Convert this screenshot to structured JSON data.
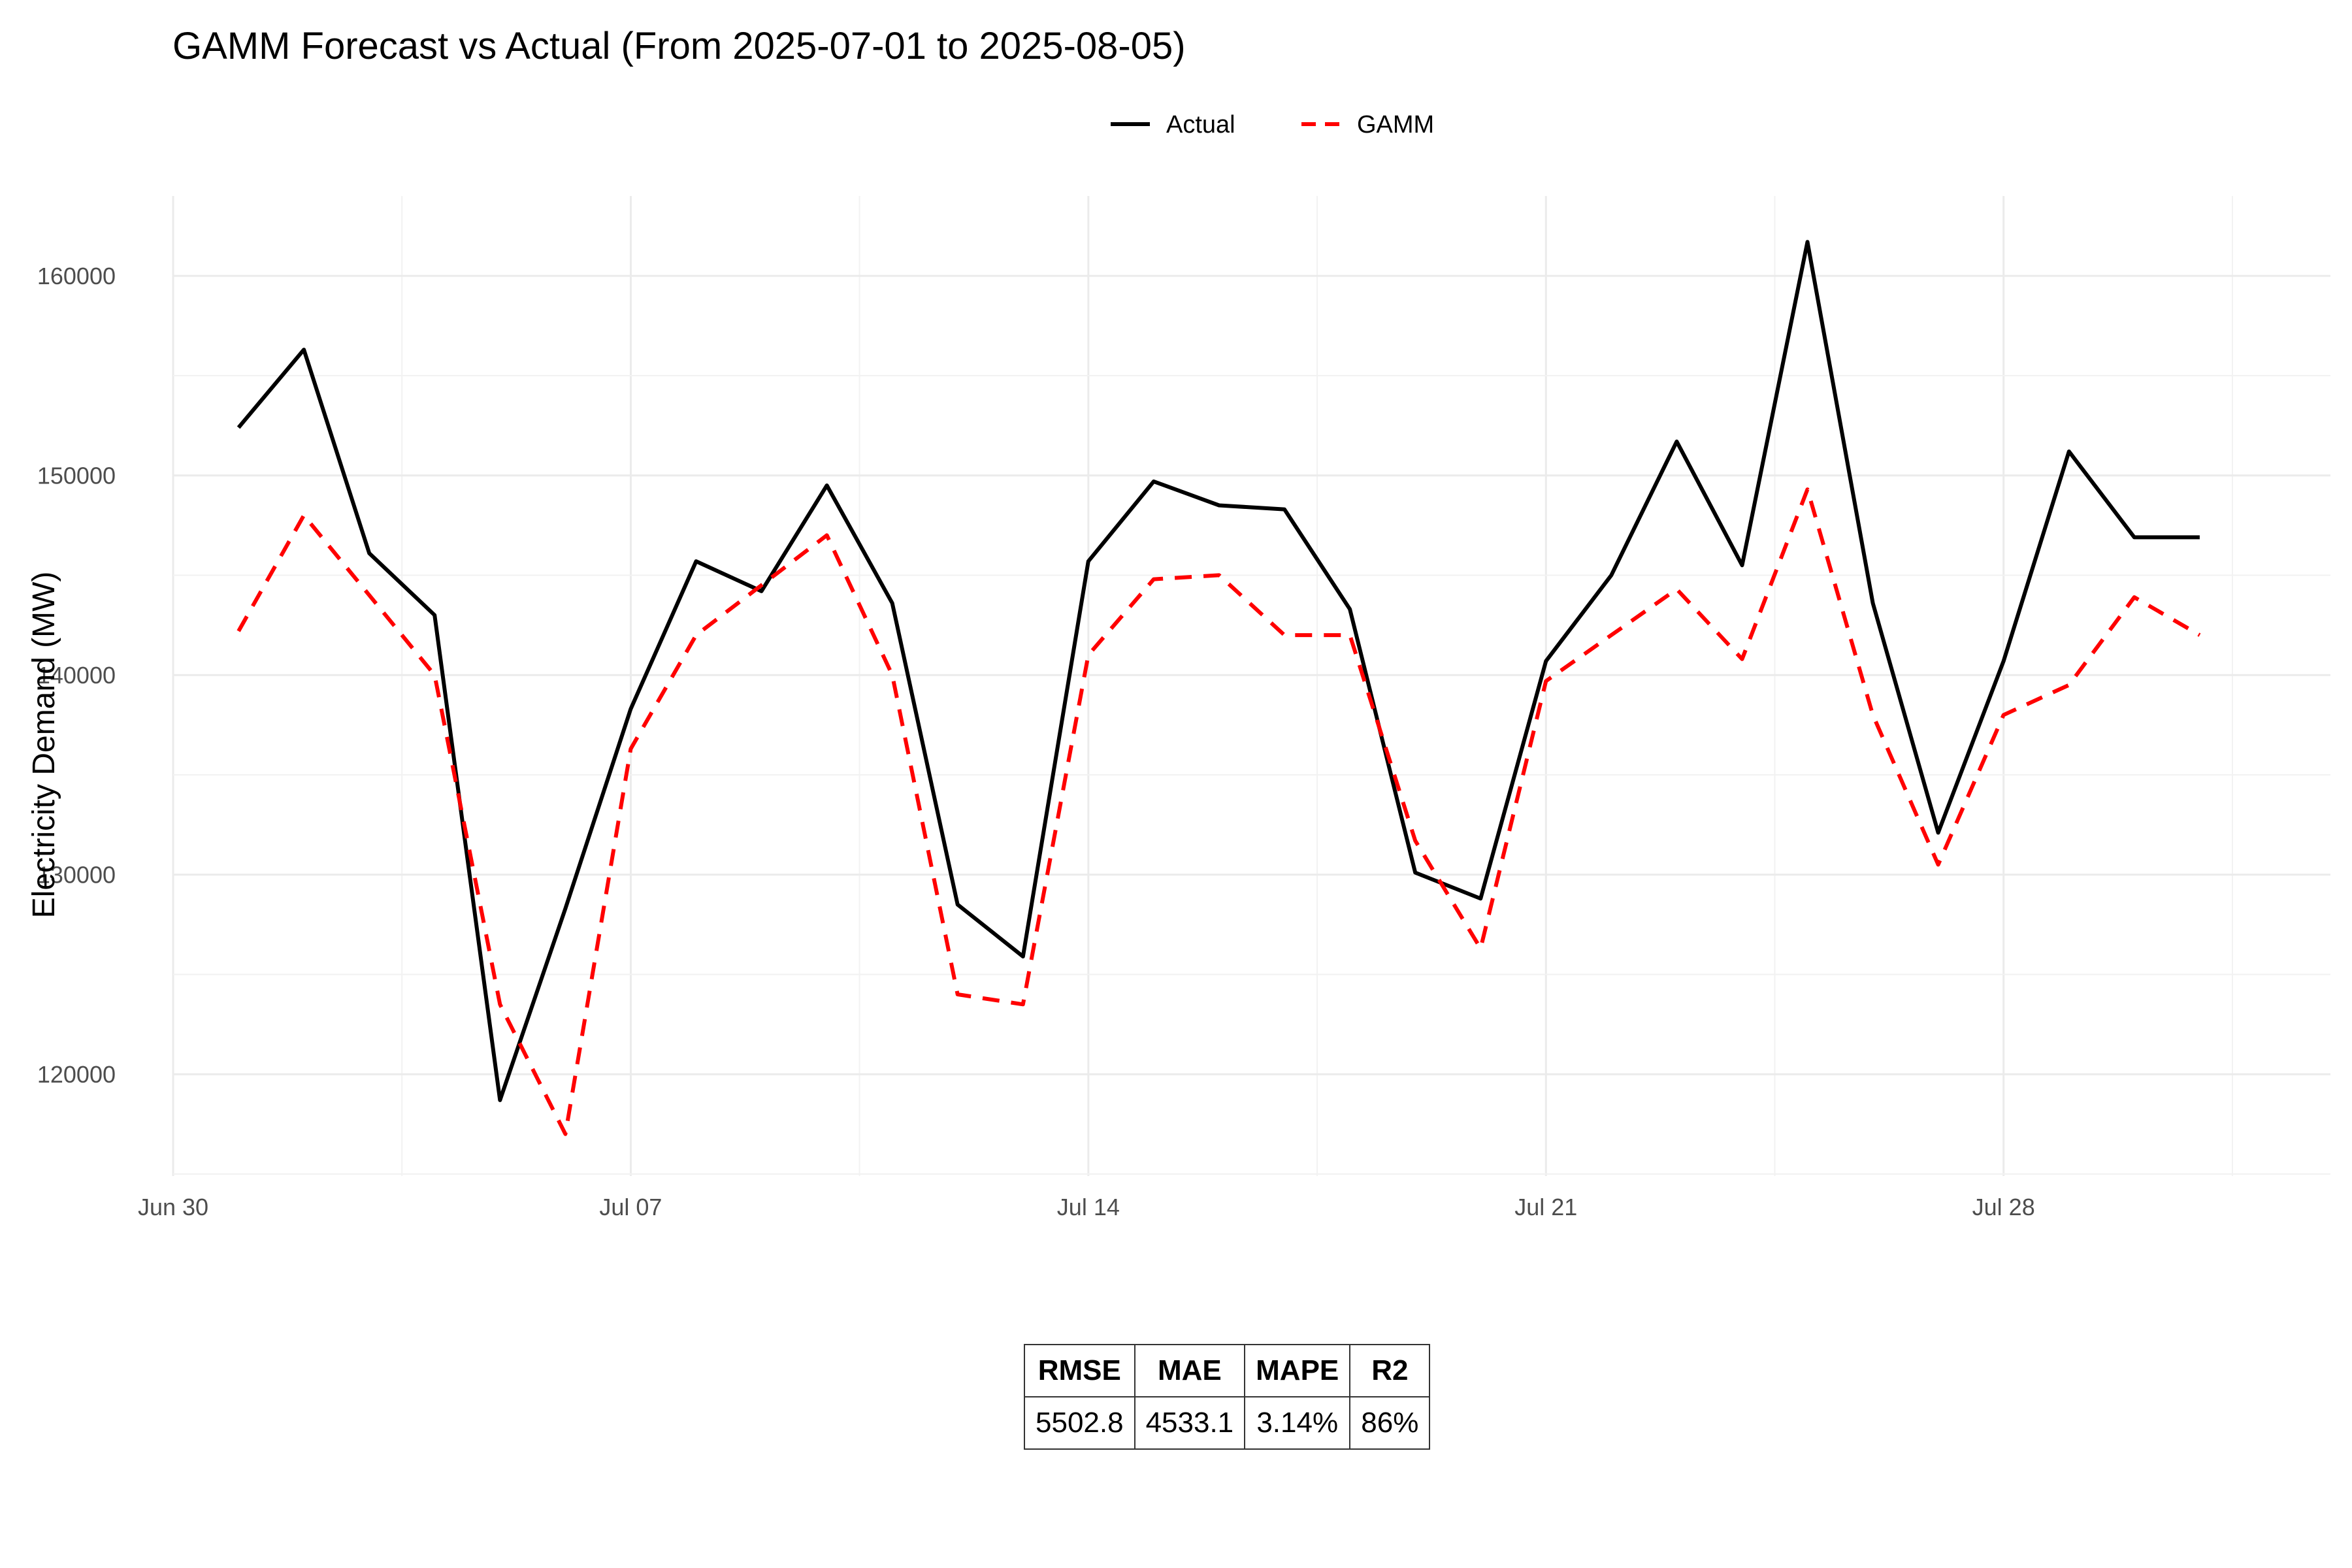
{
  "chart_data": {
    "type": "line",
    "title": "GAMM Forecast vs Actual (From 2025-07-01 to 2025-08-05)",
    "xlabel": "",
    "ylabel": "Electricity Demand (MW)",
    "x_ticks": [
      "Jun 30",
      "Jul 07",
      "Jul 14",
      "Jul 21",
      "Jul 28"
    ],
    "x_tick_dates": [
      "2025-06-30",
      "2025-07-07",
      "2025-07-14",
      "2025-07-21",
      "2025-07-28"
    ],
    "xlim": [
      "2025-06-30",
      "2025-08-02"
    ],
    "y_ticks": [
      120000,
      130000,
      140000,
      150000,
      160000
    ],
    "ylim": [
      114900,
      164000
    ],
    "grid": true,
    "legend_position": "top-center",
    "x": [
      "2025-07-01",
      "2025-07-02",
      "2025-07-03",
      "2025-07-04",
      "2025-07-05",
      "2025-07-06",
      "2025-07-07",
      "2025-07-08",
      "2025-07-09",
      "2025-07-10",
      "2025-07-11",
      "2025-07-12",
      "2025-07-13",
      "2025-07-14",
      "2025-07-15",
      "2025-07-16",
      "2025-07-17",
      "2025-07-18",
      "2025-07-19",
      "2025-07-20",
      "2025-07-21",
      "2025-07-22",
      "2025-07-23",
      "2025-07-24",
      "2025-07-25",
      "2025-07-26",
      "2025-07-27",
      "2025-07-28",
      "2025-07-29",
      "2025-07-30",
      "2025-07-31"
    ],
    "series": [
      {
        "name": "Actual",
        "color": "#000000",
        "style": "solid",
        "values": [
          152400,
          156300,
          146100,
          143000,
          118700,
          128300,
          138300,
          145700,
          144200,
          149500,
          143600,
          128500,
          125900,
          145700,
          149700,
          148500,
          148300,
          143300,
          130100,
          128800,
          140700,
          145000,
          151700,
          145500,
          161700,
          143600,
          132100,
          140700,
          151200,
          146900,
          146900
        ]
      },
      {
        "name": "GAMM",
        "color": "#ff0000",
        "style": "dashed",
        "values": [
          142200,
          148000,
          144000,
          140000,
          123500,
          117000,
          136300,
          142000,
          144500,
          147000,
          140000,
          124000,
          123500,
          141000,
          144800,
          145000,
          142000,
          142000,
          131700,
          126300,
          139700,
          142000,
          144300,
          140800,
          149300,
          138000,
          130500,
          138000,
          139500,
          143900,
          142000
        ]
      }
    ]
  },
  "metrics_table": {
    "headers": [
      "RMSE",
      "MAE",
      "MAPE",
      "R2"
    ],
    "values": [
      "5502.8",
      "4533.1",
      "3.14%",
      "86%"
    ]
  }
}
